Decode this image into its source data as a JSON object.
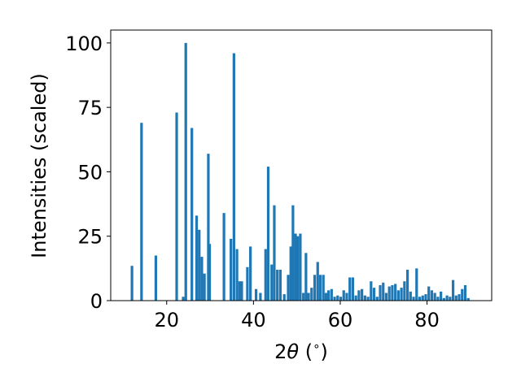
{
  "chart_data": {
    "type": "bar",
    "xlabel_parts": {
      "pre": "2",
      "theta": "θ",
      "post": " (",
      "degree": "∘",
      "close": ")"
    },
    "ylabel": "Intensities (scaled)",
    "xlim": [
      7.1,
      94.9
    ],
    "ylim": [
      0,
      105
    ],
    "xticks": [
      20,
      40,
      60,
      80
    ],
    "yticks": [
      0,
      25,
      50,
      75,
      100
    ],
    "bar_width": 0.6,
    "color": "#1f77b4",
    "x": [
      12.0,
      14.2,
      17.5,
      22.3,
      23.8,
      24.4,
      25.8,
      26.9,
      27.5,
      28.1,
      28.7,
      29.6,
      29.9,
      33.2,
      34.8,
      35.5,
      36.2,
      36.8,
      37.3,
      38.6,
      39.3,
      40.6,
      41.6,
      42.8,
      43.4,
      44.2,
      44.8,
      45.5,
      46.2,
      47.1,
      48.0,
      48.6,
      49.1,
      49.7,
      50.2,
      50.8,
      51.5,
      52.1,
      52.7,
      53.4,
      54.1,
      54.8,
      55.4,
      56.1,
      56.7,
      57.3,
      58.0,
      58.7,
      59.4,
      60.1,
      60.8,
      61.5,
      62.2,
      62.9,
      63.6,
      64.3,
      65.0,
      65.7,
      66.4,
      67.1,
      67.8,
      68.5,
      69.2,
      69.9,
      70.6,
      71.3,
      72.0,
      72.7,
      73.4,
      74.1,
      74.8,
      75.5,
      76.2,
      76.9,
      77.6,
      78.3,
      79.0,
      79.7,
      80.4,
      81.1,
      81.8,
      82.5,
      83.2,
      83.9,
      84.6,
      85.3,
      86.0,
      86.7,
      87.4,
      88.1,
      88.8,
      89.5
    ],
    "values": [
      13.5,
      69.0,
      17.5,
      73.0,
      1.5,
      100.0,
      67.0,
      33.0,
      27.5,
      17.0,
      10.5,
      57.0,
      22.0,
      34.0,
      24.0,
      96.0,
      20.0,
      7.5,
      7.5,
      13.0,
      21.0,
      4.5,
      3.0,
      20.0,
      52.0,
      14.0,
      37.0,
      12.0,
      12.0,
      2.5,
      10.0,
      21.0,
      37.0,
      26.0,
      25.0,
      26.0,
      3.0,
      18.5,
      3.0,
      5.0,
      10.0,
      15.0,
      10.0,
      10.0,
      3.0,
      4.0,
      4.5,
      1.5,
      2.0,
      1.5,
      4.0,
      3.0,
      9.0,
      9.0,
      2.0,
      4.0,
      4.5,
      2.0,
      1.5,
      7.5,
      5.0,
      1.5,
      6.0,
      7.0,
      3.0,
      5.5,
      6.0,
      6.5,
      4.0,
      5.0,
      7.5,
      12.0,
      3.5,
      1.5,
      12.5,
      1.5,
      2.0,
      2.5,
      5.5,
      4.0,
      3.0,
      1.5,
      3.5,
      1.0,
      2.0,
      1.5,
      8.0,
      2.0,
      2.5,
      4.5,
      6.0,
      1.0
    ]
  }
}
